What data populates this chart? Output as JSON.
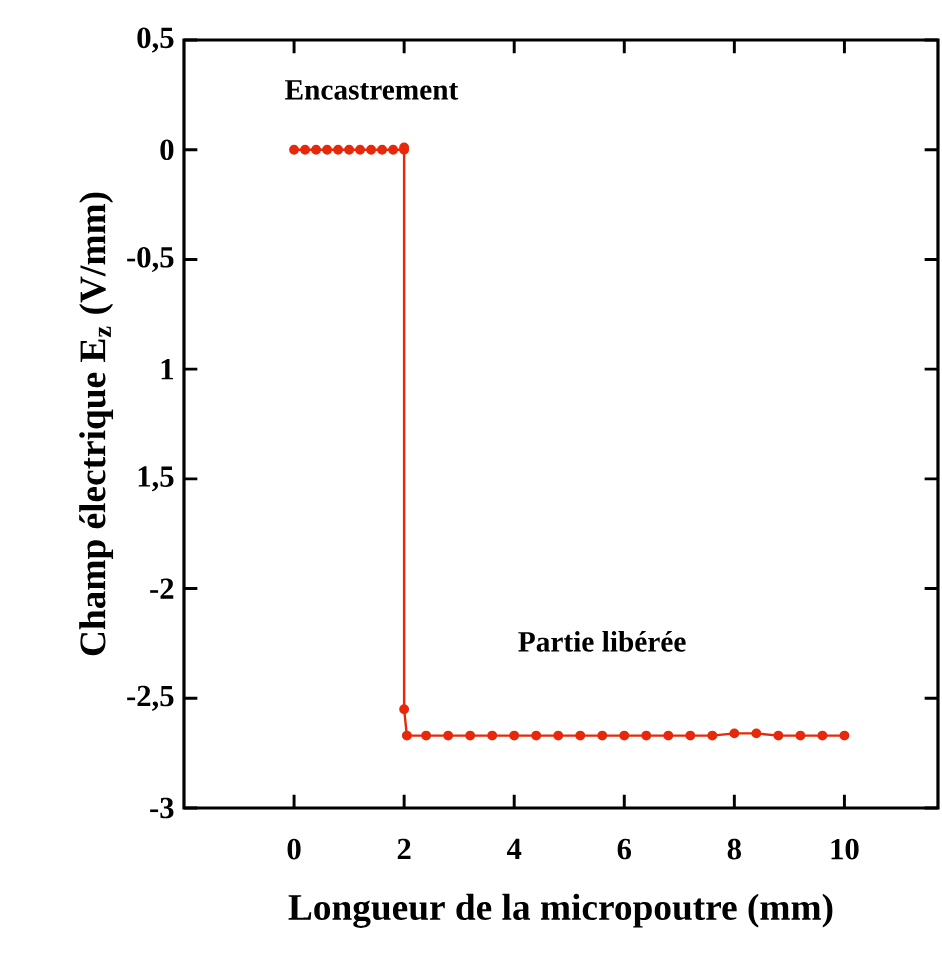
{
  "chart_data": {
    "type": "line",
    "xlabel": "Longueur de la micropoutre (mm)",
    "ylabel": "Champ électrique E$_{z}$  (V/mm)",
    "x": [
      0,
      0.2,
      0.4,
      0.6,
      0.8,
      1.0,
      1.2,
      1.4,
      1.6,
      1.8,
      2.0,
      2.0,
      2.0,
      2.05,
      2.4,
      2.8,
      3.2,
      3.6,
      4.0,
      4.4,
      4.8,
      5.2,
      5.6,
      6.0,
      6.4,
      6.8,
      7.2,
      7.6,
      8.0,
      8.4,
      8.8,
      9.2,
      9.6,
      10.0
    ],
    "series": [
      {
        "color": "#e8280a",
        "values": [
          0,
          0,
          0,
          0,
          0,
          0,
          0,
          0,
          0,
          0,
          0,
          0.01,
          -2.55,
          -2.67,
          -2.67,
          -2.67,
          -2.67,
          -2.67,
          -2.67,
          -2.67,
          -2.67,
          -2.67,
          -2.67,
          -2.67,
          -2.67,
          -2.67,
          -2.67,
          -2.67,
          -2.66,
          -2.66,
          -2.67,
          -2.67,
          -2.67,
          -2.67
        ]
      }
    ],
    "xlim": [
      -2,
      11.7
    ],
    "ylim": [
      -3,
      0.5
    ],
    "xticks": [
      0,
      2,
      4,
      6,
      8,
      10
    ],
    "yticks": [
      {
        "value": 0.5,
        "label": "0,5"
      },
      0,
      {
        "value": -0.5,
        "label": "-0,5"
      },
      {
        "value": -1,
        "label": "1"
      },
      {
        "value": -1.5,
        "label": "1,5"
      },
      -2,
      {
        "value": -2.5,
        "label": "-2,5"
      },
      -3
    ],
    "marker": "circle",
    "annotations": [
      "Encastrement",
      "Partie libérée"
    ]
  }
}
